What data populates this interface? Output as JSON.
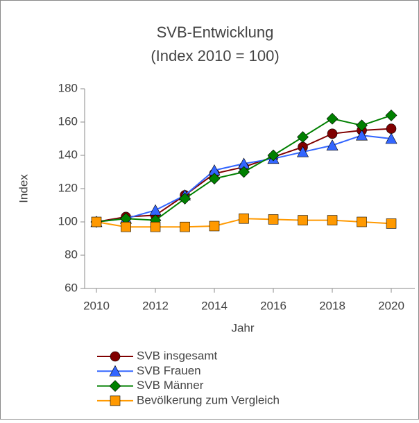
{
  "chart_data": {
    "type": "line",
    "title": "SVB-Entwicklung",
    "subtitle": "(Index 2010 = 100)",
    "xlabel": "Jahr",
    "ylabel": "Index",
    "x": [
      2010,
      2011,
      2012,
      2013,
      2014,
      2015,
      2016,
      2017,
      2018,
      2019,
      2020
    ],
    "series": [
      {
        "name": "SVB insgesamt",
        "color": "#800000",
        "marker": "circle",
        "values": [
          100,
          103,
          104,
          116,
          129,
          133,
          139,
          145,
          153,
          155,
          156
        ]
      },
      {
        "name": "SVB Frauen",
        "color": "#3366ff",
        "marker": "triangle",
        "values": [
          100,
          102,
          107,
          116,
          131,
          135,
          138,
          142,
          146,
          152,
          150
        ]
      },
      {
        "name": "SVB Männer",
        "color": "#008000",
        "marker": "diamond",
        "values": [
          100,
          102,
          101,
          114,
          126,
          130,
          140,
          151,
          162,
          158,
          164
        ]
      },
      {
        "name": "Bevölkerung zum Vergleich",
        "color": "#ff9900",
        "marker": "square",
        "values": [
          100,
          97,
          97,
          97,
          97.5,
          102,
          101.5,
          101,
          101,
          100,
          99
        ]
      }
    ],
    "xlim": [
      2009.6,
      2020.8
    ],
    "xticks": [
      2010,
      2012,
      2014,
      2016,
      2018,
      2020
    ],
    "ylim": [
      60,
      180
    ],
    "yticks": [
      60,
      80,
      100,
      120,
      140,
      160,
      180
    ],
    "grid": false,
    "legend": "bottom"
  }
}
